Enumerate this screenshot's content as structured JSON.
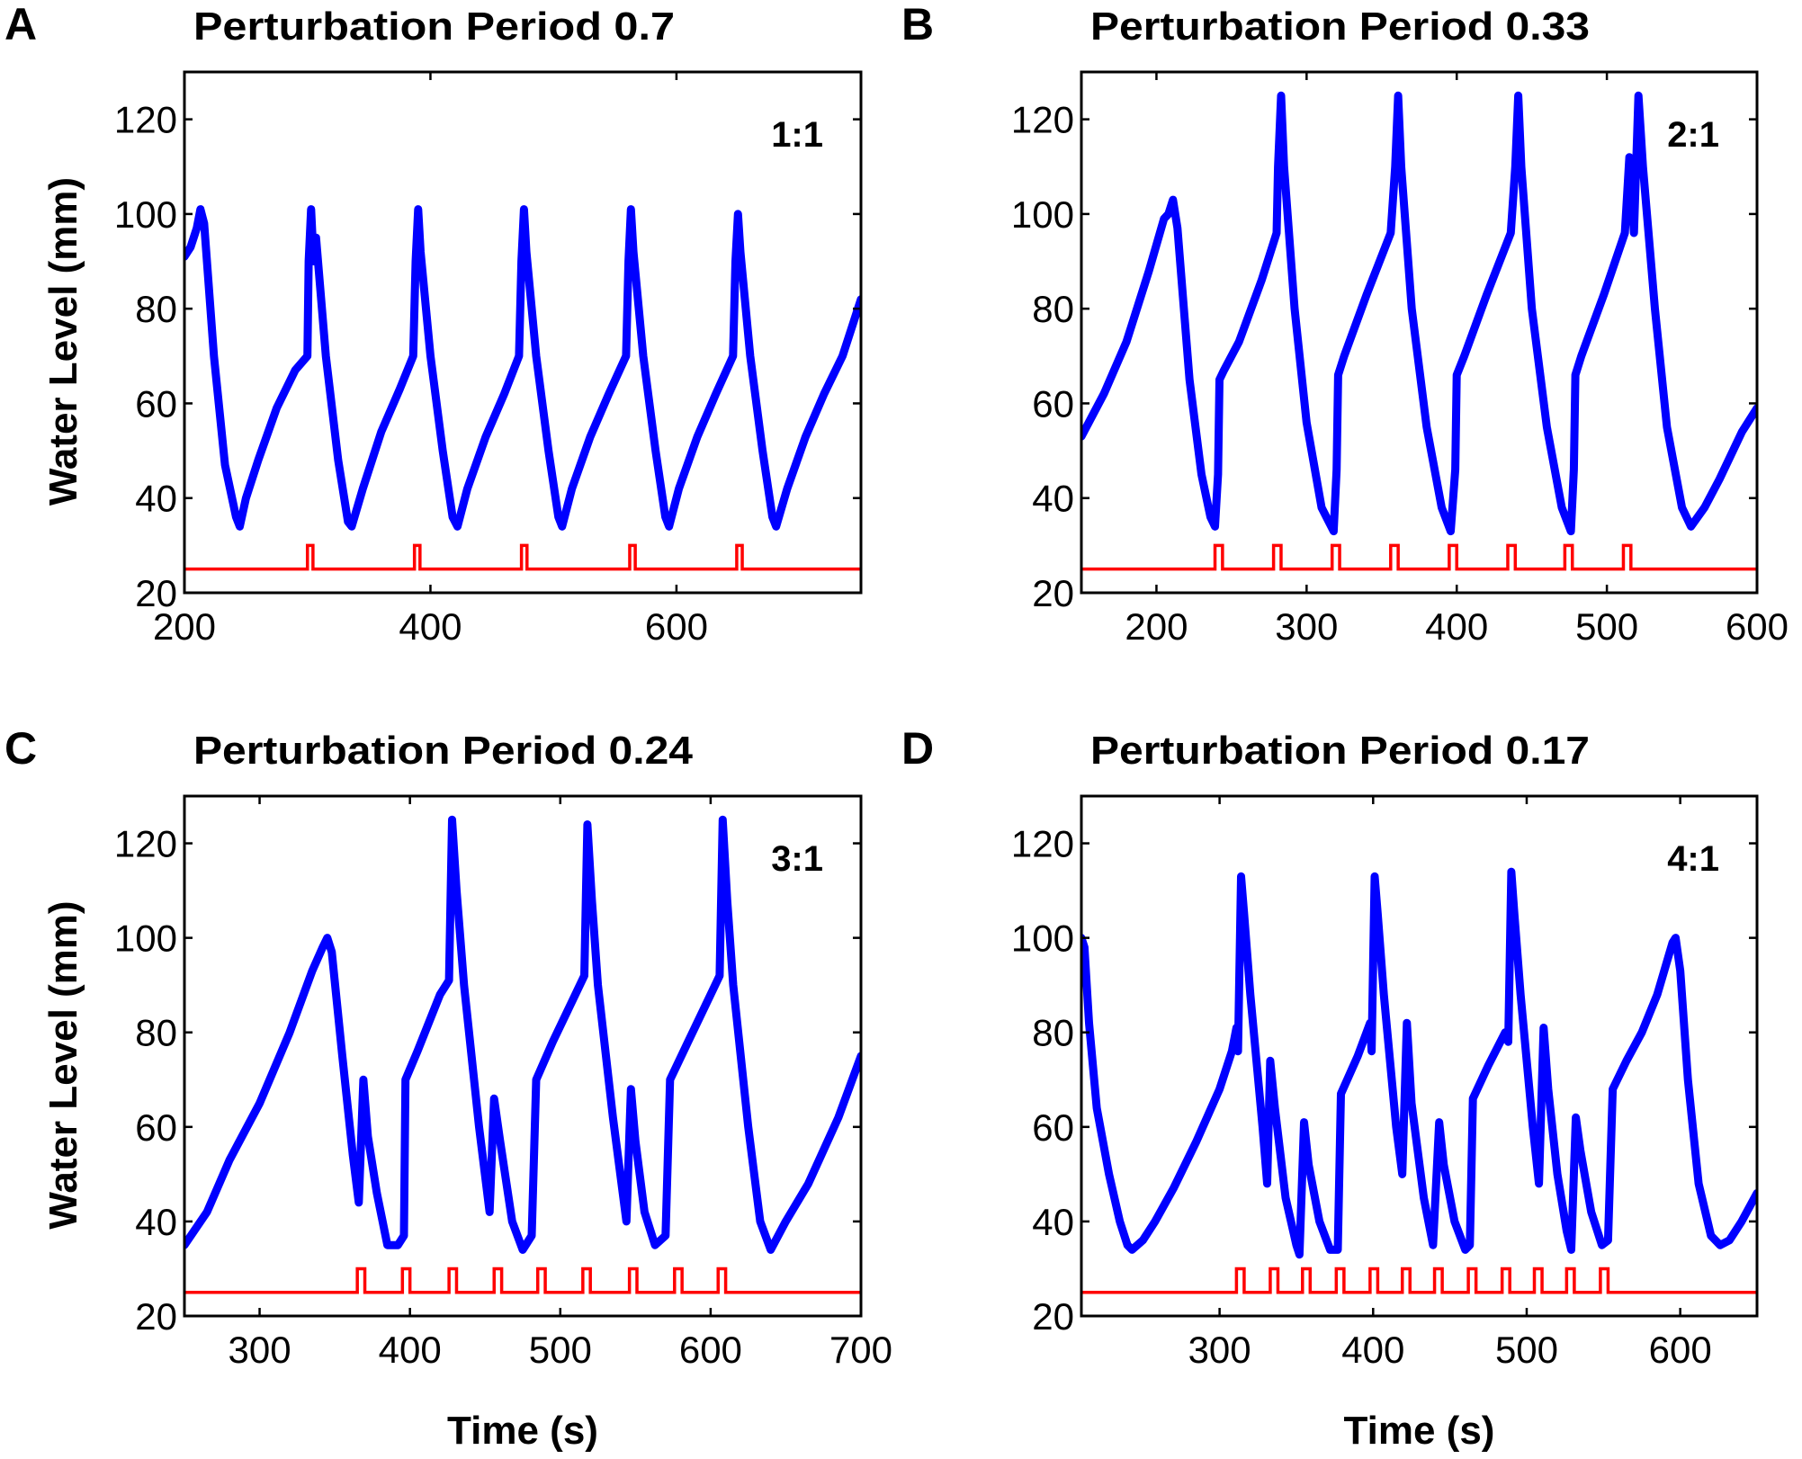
{
  "figure": {
    "colors": {
      "water_level": "#0000ff",
      "perturbation": "#ff0000",
      "axes": "#000000"
    }
  },
  "chart_data": [
    {
      "type": "line",
      "panel": "A",
      "title": "Perturbation Period 0.7",
      "annotation": "1:1",
      "xlabel": "",
      "ylabel": "Water Level (mm)",
      "xlim": [
        200,
        750
      ],
      "ylim": [
        20,
        130
      ],
      "xticks": [
        200,
        400,
        600
      ],
      "yticks": [
        20,
        40,
        60,
        80,
        100,
        120
      ],
      "grid": false,
      "series": [
        {
          "name": "water level",
          "x": [
            200,
            205,
            210,
            213,
            216,
            224,
            233,
            242,
            245,
            250,
            260,
            275,
            290,
            300,
            301,
            303,
            305,
            307,
            315,
            325,
            333,
            336,
            345,
            360,
            375,
            386,
            388,
            390,
            392,
            400,
            410,
            418,
            422,
            430,
            445,
            460,
            472,
            474,
            476,
            478,
            486,
            496,
            504,
            507,
            515,
            530,
            545,
            559,
            561,
            563,
            565,
            573,
            583,
            591,
            594,
            602,
            617,
            632,
            646,
            648,
            650,
            652,
            660,
            670,
            678,
            681,
            690,
            705,
            720,
            735,
            750
          ],
          "y": [
            91,
            93,
            97,
            101,
            98,
            70,
            47,
            36,
            34,
            40,
            48,
            59,
            67,
            70,
            90,
            101,
            90,
            95,
            70,
            48,
            35,
            34,
            42,
            54,
            63,
            70,
            90,
            101,
            92,
            70,
            50,
            36,
            34,
            42,
            53,
            62,
            70,
            90,
            101,
            92,
            70,
            50,
            36,
            34,
            42,
            53,
            62,
            70,
            90,
            101,
            92,
            70,
            50,
            36,
            34,
            42,
            53,
            62,
            70,
            90,
            100,
            92,
            70,
            50,
            36,
            34,
            42,
            53,
            62,
            70,
            82
          ]
        },
        {
          "name": "perturbation",
          "baseline": 25,
          "pulse_level": 30,
          "pulse_width": 4.5,
          "pulse_starts": [
            300,
            387,
            474,
            562,
            649
          ]
        }
      ]
    },
    {
      "type": "line",
      "panel": "B",
      "title": "Perturbation Period 0.33",
      "annotation": "2:1",
      "xlabel": "",
      "ylabel": "",
      "xlim": [
        150,
        600
      ],
      "ylim": [
        20,
        130
      ],
      "xticks": [
        200,
        300,
        400,
        500,
        600
      ],
      "yticks": [
        20,
        40,
        60,
        80,
        100,
        120
      ],
      "grid": false,
      "series": [
        {
          "name": "water level",
          "x": [
            150,
            165,
            180,
            195,
            205,
            208,
            211,
            214,
            222,
            230,
            236,
            239,
            241,
            242,
            245,
            255,
            270,
            280,
            281,
            283,
            285,
            292,
            300,
            310,
            318,
            320,
            321,
            325,
            340,
            356,
            359,
            361,
            363,
            370,
            380,
            390,
            396,
            399,
            400,
            405,
            420,
            436,
            439,
            441,
            443,
            450,
            460,
            470,
            476,
            478,
            479,
            483,
            498,
            512,
            515,
            518,
            521,
            524,
            532,
            540,
            550,
            556,
            565,
            575,
            590,
            600
          ],
          "y": [
            53,
            62,
            73,
            88,
            99,
            100,
            103,
            97,
            65,
            45,
            36,
            34,
            45,
            65,
            67,
            73,
            86,
            96,
            110,
            125,
            110,
            80,
            56,
            38,
            33,
            46,
            66,
            70,
            83,
            96,
            110,
            125,
            110,
            80,
            55,
            38,
            33,
            46,
            66,
            70,
            83,
            96,
            110,
            125,
            110,
            80,
            55,
            38,
            33,
            46,
            66,
            70,
            83,
            96,
            112,
            96,
            125,
            110,
            80,
            55,
            38,
            34,
            38,
            44,
            54,
            59
          ]
        },
        {
          "name": "perturbation",
          "baseline": 25,
          "pulse_level": 30,
          "pulse_width": 5,
          "pulse_starts": [
            239,
            278,
            317,
            356,
            395,
            434,
            472,
            511
          ]
        }
      ]
    },
    {
      "type": "line",
      "panel": "C",
      "title": "Perturbation Period 0.24",
      "annotation": "3:1",
      "xlabel": "Time (s)",
      "ylabel": "Water Level (mm)",
      "xlim": [
        250,
        700
      ],
      "ylim": [
        20,
        130
      ],
      "xticks": [
        300,
        400,
        500,
        600,
        700
      ],
      "yticks": [
        20,
        40,
        60,
        80,
        100,
        120
      ],
      "grid": false,
      "series": [
        {
          "name": "water level",
          "x": [
            250,
            265,
            280,
            300,
            320,
            335,
            342,
            345,
            348,
            355,
            362,
            366,
            369,
            372,
            378,
            385,
            392,
            396,
            397,
            405,
            420,
            426,
            428,
            431,
            436,
            446,
            453,
            456,
            460,
            468,
            475,
            481,
            484,
            495,
            510,
            516,
            518,
            521,
            525,
            535,
            544,
            547,
            550,
            556,
            563,
            570,
            573,
            585,
            600,
            606,
            608,
            611,
            615,
            625,
            633,
            640,
            650,
            665,
            685,
            700
          ],
          "y": [
            35,
            42,
            53,
            65,
            80,
            93,
            98,
            100,
            97,
            75,
            54,
            44,
            70,
            58,
            46,
            35,
            35,
            37,
            70,
            76,
            88,
            91,
            125,
            110,
            90,
            60,
            42,
            66,
            57,
            40,
            34,
            37,
            70,
            78,
            88,
            92,
            124,
            108,
            90,
            62,
            40,
            68,
            57,
            42,
            35,
            37,
            70,
            78,
            88,
            92,
            125,
            108,
            90,
            60,
            40,
            34,
            40,
            48,
            62,
            75
          ]
        },
        {
          "name": "perturbation",
          "baseline": 25,
          "pulse_level": 30,
          "pulse_width": 5,
          "pulse_starts": [
            365,
            395,
            426,
            456,
            485,
            515,
            546,
            576,
            605
          ]
        }
      ]
    },
    {
      "type": "line",
      "panel": "D",
      "title": "Perturbation Period 0.17",
      "annotation": "4:1",
      "xlabel": "Time (s)",
      "ylabel": "",
      "xlim": [
        210,
        650
      ],
      "ylim": [
        20,
        130
      ],
      "xticks": [
        300,
        400,
        500,
        600
      ],
      "yticks": [
        20,
        40,
        60,
        80,
        100,
        120
      ],
      "grid": false,
      "series": [
        {
          "name": "water level",
          "x": [
            210,
            212,
            215,
            220,
            228,
            235,
            240,
            243,
            250,
            258,
            270,
            285,
            300,
            308,
            311,
            312,
            314,
            316,
            320,
            328,
            331,
            333,
            336,
            343,
            350,
            352,
            355,
            358,
            365,
            372,
            377,
            379,
            390,
            398,
            399,
            401,
            403,
            407,
            415,
            419,
            422,
            425,
            433,
            439,
            443,
            446,
            453,
            460,
            463,
            465,
            475,
            486,
            488,
            490,
            492,
            496,
            504,
            508,
            511,
            514,
            520,
            526,
            529,
            532,
            535,
            542,
            549,
            553,
            556,
            565,
            575,
            585,
            595,
            597,
            600,
            605,
            612,
            620,
            626,
            632,
            640,
            650
          ],
          "y": [
            100,
            98,
            82,
            64,
            50,
            40,
            35,
            34,
            36,
            40,
            47,
            57,
            68,
            76,
            81,
            76,
            113,
            105,
            88,
            60,
            48,
            74,
            64,
            45,
            35,
            33,
            61,
            52,
            40,
            34,
            34,
            67,
            75,
            82,
            76,
            113,
            105,
            88,
            60,
            50,
            82,
            65,
            45,
            35,
            61,
            52,
            40,
            34,
            35,
            66,
            73,
            80,
            78,
            114,
            105,
            88,
            60,
            48,
            81,
            68,
            50,
            38,
            34,
            62,
            55,
            42,
            35,
            36,
            68,
            74,
            80,
            88,
            99,
            100,
            93,
            70,
            48,
            37,
            35,
            36,
            40,
            46
          ]
        },
        {
          "name": "perturbation",
          "baseline": 25,
          "pulse_level": 30,
          "pulse_width": 5,
          "pulse_starts": [
            311,
            333,
            354,
            376,
            398,
            419,
            440,
            462,
            484,
            505,
            526,
            548
          ]
        }
      ]
    }
  ]
}
